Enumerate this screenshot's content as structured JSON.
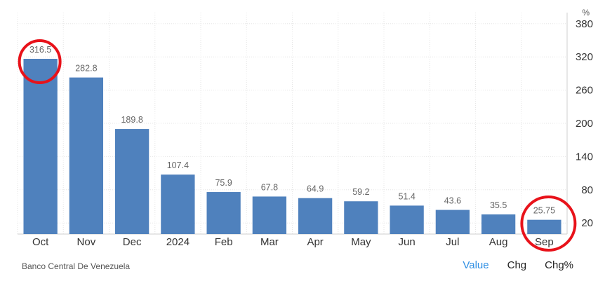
{
  "chart_data": {
    "type": "bar",
    "categories": [
      "Oct",
      "Nov",
      "Dec",
      "2024",
      "Feb",
      "Mar",
      "Apr",
      "May",
      "Jun",
      "Jul",
      "Aug",
      "Sep"
    ],
    "values": [
      316.5,
      282.8,
      189.8,
      107.4,
      75.9,
      67.8,
      64.9,
      59.2,
      51.4,
      43.6,
      35.5,
      25.75
    ],
    "value_labels": [
      "316.5",
      "282.8",
      "189.8",
      "107.4",
      "75.9",
      "67.8",
      "64.9",
      "59.2",
      "51.4",
      "43.6",
      "35.5",
      "25.75"
    ],
    "y_ticks": [
      20,
      80,
      140,
      200,
      260,
      320,
      380
    ],
    "y_tick_labels": [
      "20",
      "80",
      "140",
      "200",
      "260",
      "320",
      "380"
    ],
    "ylim": [
      0,
      400
    ],
    "y_unit": "%",
    "y_axis_side": "right",
    "grid": true,
    "bar_color": "#4f81bd",
    "highlighted_categories": [
      "Oct",
      "Sep"
    ],
    "highlight_color": "#e8121a"
  },
  "footer": {
    "source": "Banco Central De Venezuela",
    "tabs": [
      {
        "label": "Value",
        "active": true
      },
      {
        "label": "Chg",
        "active": false
      },
      {
        "label": "Chg%",
        "active": false
      }
    ]
  }
}
